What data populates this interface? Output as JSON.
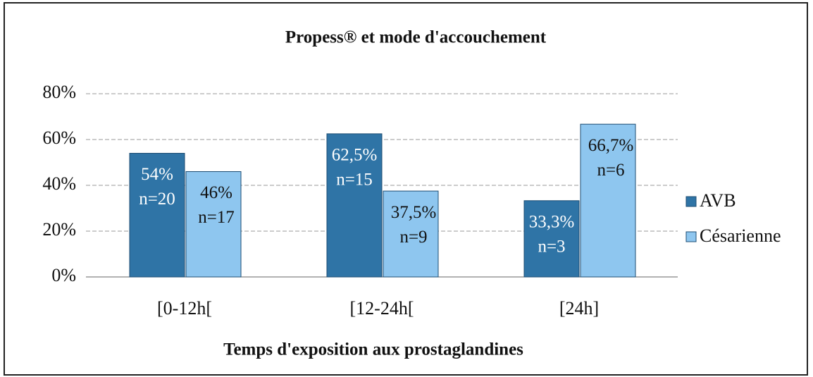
{
  "chart_data": {
    "type": "bar",
    "title": "Propess® et mode d'accouchement",
    "x_label": "Temps d'exposition aux prostaglandines",
    "categories": [
      "[0-12h[",
      "[12-24h[",
      "[24h]"
    ],
    "series": [
      {
        "name": "AVB",
        "color": "#2f74a6",
        "label_color": "#ffffff",
        "values": [
          54,
          62.5,
          33.3
        ],
        "value_labels": [
          "54%",
          "62,5%",
          "33,3%"
        ],
        "count_labels": [
          "n=20",
          "n=15",
          "n=3"
        ]
      },
      {
        "name": "Césarienne",
        "color": "#8ec6ef",
        "label_color": "#111111",
        "values": [
          46,
          37.5,
          66.7
        ],
        "value_labels": [
          "46%",
          "37,5%",
          "66,7%"
        ],
        "count_labels": [
          "n=17",
          "n=9",
          "n=6"
        ]
      }
    ],
    "ylim": [
      0,
      80
    ],
    "yticks": [
      {
        "value": 0,
        "label": "0%"
      },
      {
        "value": 20,
        "label": "20%"
      },
      {
        "value": 40,
        "label": "40%"
      },
      {
        "value": 60,
        "label": "60%"
      },
      {
        "value": 80,
        "label": "80%"
      }
    ],
    "grid": true,
    "legend": "right"
  }
}
